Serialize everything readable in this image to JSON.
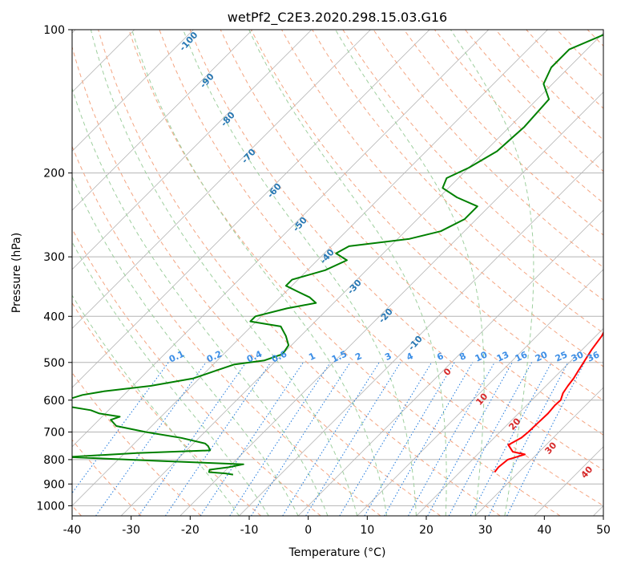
{
  "chart_data": {
    "type": "line",
    "title": "wetPf2_C2E3.2020.298.15.03.G16",
    "xlabel": "Temperature (°C)",
    "ylabel": "Pressure (hPa)",
    "xlim": [
      -40,
      50
    ],
    "ylim": [
      1050,
      100
    ],
    "y_scale": "log",
    "x_ticks": [
      "-40",
      "-30",
      "-20",
      "-10",
      "0",
      "10",
      "20",
      "30",
      "40",
      "50"
    ],
    "y_ticks": [
      "100",
      "200",
      "300",
      "400",
      "500",
      "600",
      "700",
      "800",
      "900",
      "1000"
    ],
    "grid": true,
    "skew": "skew-T log-P diagram",
    "colors": {
      "temperature": "#ff0000",
      "dewpoint": "#008000",
      "isotherms": "#b4b4b4",
      "dry_adiabats": "#f4a582",
      "moist_adiabats": "#9ecf9e",
      "mixing_ratio_lines": "#1e78dc",
      "saturation_labels": "#2878b4",
      "ccl_labels": "#d62728",
      "mixing_labels": "#3c8ee6"
    },
    "series": [
      {
        "color": "#ff0000",
        "points": [
          [
            850,
            25.9
          ],
          [
            830,
            25.7
          ],
          [
            800,
            26.0
          ],
          [
            780,
            28.0
          ],
          [
            770,
            25.5
          ],
          [
            745,
            23.6
          ],
          [
            720,
            24.6
          ],
          [
            700,
            24.8
          ],
          [
            670,
            24.9
          ],
          [
            640,
            25.0
          ],
          [
            615,
            24.8
          ],
          [
            600,
            24.9
          ],
          [
            580,
            24.1
          ],
          [
            560,
            23.7
          ],
          [
            540,
            23.4
          ],
          [
            520,
            22.9
          ],
          [
            500,
            22.4
          ],
          [
            470,
            21.6
          ],
          [
            440,
            21.0
          ],
          [
            420,
            20.2
          ],
          [
            400,
            19.2
          ],
          [
            370,
            18.2
          ],
          [
            340,
            17.2
          ],
          [
            300,
            16.0
          ],
          [
            280,
            15.2
          ],
          [
            260,
            14.4
          ],
          [
            240,
            14.1
          ],
          [
            220,
            14.0
          ],
          [
            200,
            14.0
          ],
          [
            180,
            12.8
          ],
          [
            160,
            11.2
          ],
          [
            140,
            8.9
          ],
          [
            125,
            6.7
          ],
          [
            115,
            5.4
          ],
          [
            110,
            4.8
          ],
          [
            100,
            2.8
          ]
        ]
      },
      {
        "color": "#008000",
        "points": [
          [
            860,
            -18.0
          ],
          [
            855,
            -19.5
          ],
          [
            850,
            -22.5
          ],
          [
            840,
            -22.8
          ],
          [
            830,
            -20.0
          ],
          [
            818,
            -18.0
          ],
          [
            805,
            -33.0
          ],
          [
            790,
            -49.0
          ],
          [
            775,
            -38.0
          ],
          [
            765,
            -26.0
          ],
          [
            750,
            -27.0
          ],
          [
            740,
            -28.0
          ],
          [
            720,
            -33.0
          ],
          [
            700,
            -40.0
          ],
          [
            680,
            -46.0
          ],
          [
            660,
            -48.0
          ],
          [
            650,
            -47.0
          ],
          [
            640,
            -51.0
          ],
          [
            630,
            -53.0
          ],
          [
            620,
            -57.0
          ],
          [
            610,
            -58.5
          ],
          [
            600,
            -59.0
          ],
          [
            585,
            -57.0
          ],
          [
            575,
            -54.0
          ],
          [
            560,
            -47.0
          ],
          [
            540,
            -41.0
          ],
          [
            520,
            -38.5
          ],
          [
            505,
            -36.5
          ],
          [
            495,
            -32.0
          ],
          [
            480,
            -30.0
          ],
          [
            460,
            -30.5
          ],
          [
            440,
            -32.5
          ],
          [
            420,
            -35.0
          ],
          [
            410,
            -41.0
          ],
          [
            400,
            -41.0
          ],
          [
            385,
            -37.0
          ],
          [
            375,
            -33.0
          ],
          [
            365,
            -35.0
          ],
          [
            355,
            -38.0
          ],
          [
            345,
            -41.0
          ],
          [
            335,
            -41.0
          ],
          [
            320,
            -37.0
          ],
          [
            305,
            -35.0
          ],
          [
            295,
            -38.0
          ],
          [
            285,
            -37.0
          ],
          [
            275,
            -28.0
          ],
          [
            265,
            -24.0
          ],
          [
            250,
            -22.0
          ],
          [
            235,
            -22.0
          ],
          [
            225,
            -27.0
          ],
          [
            215,
            -31.0
          ],
          [
            205,
            -32.0
          ],
          [
            195,
            -30.0
          ],
          [
            180,
            -28.0
          ],
          [
            160,
            -27.5
          ],
          [
            140,
            -28.0
          ],
          [
            130,
            -31.5
          ],
          [
            120,
            -33.0
          ],
          [
            110,
            -33.0
          ],
          [
            100,
            -28.5
          ]
        ]
      }
    ],
    "annotations": {
      "dry_adiabat_labels": [
        "-100",
        "-90",
        "-80",
        "-70",
        "-60",
        "-50",
        "-40",
        "-30",
        "-20",
        "-10"
      ],
      "mixing_ratio_labels": [
        "0.1",
        "0.2",
        "0.4",
        "0.6",
        "1",
        "1.5",
        "2",
        "3",
        "4",
        "6",
        "8",
        "10",
        "13",
        "16",
        "20",
        "25",
        "30",
        "36"
      ],
      "moist_labels": [
        "0",
        "10",
        "20",
        "30",
        "40"
      ]
    }
  }
}
